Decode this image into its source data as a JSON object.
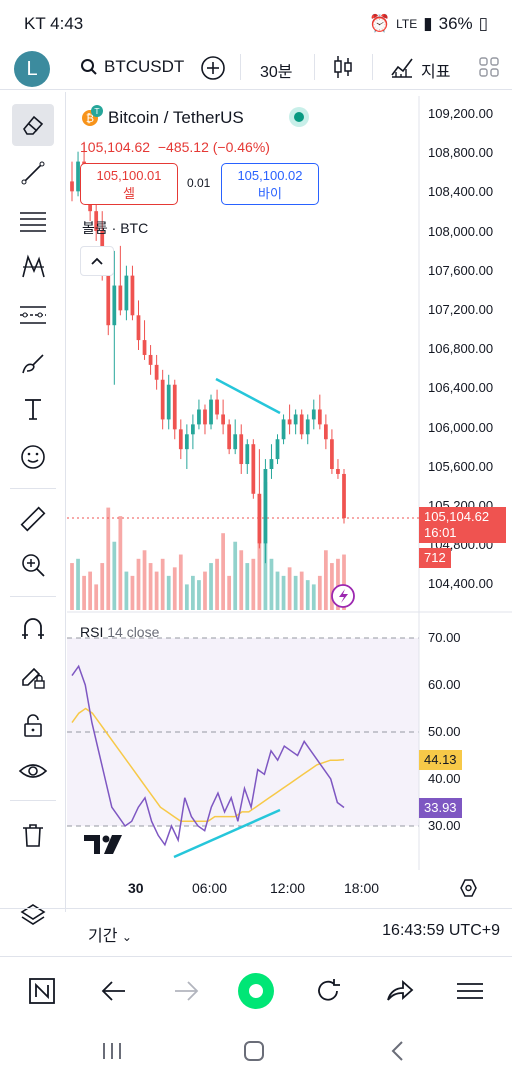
{
  "status_bar": {
    "time": "KT 4:43",
    "network": "LTE",
    "battery": "36%"
  },
  "toolbar": {
    "avatar_letter": "L",
    "symbol": "BTCUSDT",
    "interval": "30분",
    "indicators_label": "지표"
  },
  "legend": {
    "title": "Bitcoin / TetherUS",
    "last_price": "105,104.62",
    "change": "−485.12 (−0.46%)",
    "sell_price": "105,100.01",
    "sell_label": "셀",
    "spread": "0.01",
    "buy_price": "105,100.02",
    "buy_label": "바이",
    "volume_label": "볼륨 · BTC"
  },
  "price_axis": {
    "ticks": [
      "109,200.00",
      "108,800.00",
      "108,400.00",
      "108,000.00",
      "107,600.00",
      "107,200.00",
      "106,800.00",
      "106,400.00",
      "106,000.00",
      "105,600.00",
      "105,200.00",
      "104,800.00",
      "104,400.00"
    ],
    "current_price": "105,104.62",
    "countdown": "16:01",
    "volume_badge": "712"
  },
  "rsi": {
    "legend_name": "RSI",
    "legend_params": "14 close",
    "ticks": [
      "70.00",
      "60.00",
      "50.00",
      "40.00",
      "30.00"
    ],
    "ma_value": "44.13",
    "rsi_value": "33.93"
  },
  "time_axis": {
    "ticks": [
      "30",
      "06:00",
      "12:00",
      "18:00"
    ]
  },
  "bottom_bar": {
    "period_label": "기간",
    "clock": "16:43:59 UTC+9"
  },
  "colors": {
    "up": "#26a69a",
    "down": "#ef5350",
    "rsi_line": "#7e57c2",
    "rsi_ma": "#f7c948",
    "trendline": "#26c6da"
  },
  "chart_data": {
    "type": "candlestick",
    "title": "Bitcoin / TetherUS",
    "interval": "30분",
    "ylim": [
      104300,
      109300
    ],
    "candles": [
      {
        "o": 108500,
        "h": 108700,
        "l": 108300,
        "c": 108400
      },
      {
        "o": 108400,
        "h": 108800,
        "l": 108350,
        "c": 108700
      },
      {
        "o": 108700,
        "h": 108900,
        "l": 108500,
        "c": 108550
      },
      {
        "o": 108550,
        "h": 108650,
        "l": 108100,
        "c": 108200
      },
      {
        "o": 108200,
        "h": 108300,
        "l": 107900,
        "c": 108000
      },
      {
        "o": 108000,
        "h": 108200,
        "l": 107500,
        "c": 107600
      },
      {
        "o": 107600,
        "h": 107700,
        "l": 106950,
        "c": 107050
      },
      {
        "o": 107050,
        "h": 107800,
        "l": 106450,
        "c": 107450
      },
      {
        "o": 107450,
        "h": 107850,
        "l": 107150,
        "c": 107200
      },
      {
        "o": 107200,
        "h": 107650,
        "l": 107100,
        "c": 107550
      },
      {
        "o": 107550,
        "h": 107650,
        "l": 107100,
        "c": 107150
      },
      {
        "o": 107150,
        "h": 107300,
        "l": 106800,
        "c": 106900
      },
      {
        "o": 106900,
        "h": 107100,
        "l": 106700,
        "c": 106750
      },
      {
        "o": 106750,
        "h": 106850,
        "l": 106550,
        "c": 106650
      },
      {
        "o": 106650,
        "h": 106750,
        "l": 106400,
        "c": 106500
      },
      {
        "o": 106500,
        "h": 106600,
        "l": 106000,
        "c": 106100
      },
      {
        "o": 106100,
        "h": 106550,
        "l": 106000,
        "c": 106450
      },
      {
        "o": 106450,
        "h": 106500,
        "l": 105900,
        "c": 106000
      },
      {
        "o": 106000,
        "h": 106100,
        "l": 105700,
        "c": 105800
      },
      {
        "o": 105800,
        "h": 106050,
        "l": 105600,
        "c": 105950
      },
      {
        "o": 105950,
        "h": 106150,
        "l": 105800,
        "c": 106050
      },
      {
        "o": 106050,
        "h": 106300,
        "l": 106000,
        "c": 106200
      },
      {
        "o": 106200,
        "h": 106250,
        "l": 105950,
        "c": 106050
      },
      {
        "o": 106050,
        "h": 106350,
        "l": 106000,
        "c": 106300
      },
      {
        "o": 106300,
        "h": 106400,
        "l": 106100,
        "c": 106150
      },
      {
        "o": 106150,
        "h": 106300,
        "l": 105950,
        "c": 106050
      },
      {
        "o": 106050,
        "h": 106100,
        "l": 105750,
        "c": 105800
      },
      {
        "o": 105800,
        "h": 106100,
        "l": 105750,
        "c": 105950
      },
      {
        "o": 105950,
        "h": 106050,
        "l": 105550,
        "c": 105650
      },
      {
        "o": 105650,
        "h": 105900,
        "l": 105550,
        "c": 105850
      },
      {
        "o": 105850,
        "h": 105900,
        "l": 105300,
        "c": 105350
      },
      {
        "o": 105350,
        "h": 105800,
        "l": 104800,
        "c": 104850
      },
      {
        "o": 104850,
        "h": 105700,
        "l": 104650,
        "c": 105600
      },
      {
        "o": 105600,
        "h": 105850,
        "l": 105500,
        "c": 105700
      },
      {
        "o": 105700,
        "h": 105950,
        "l": 105650,
        "c": 105900
      },
      {
        "o": 105900,
        "h": 106150,
        "l": 105850,
        "c": 106100
      },
      {
        "o": 106100,
        "h": 106250,
        "l": 105950,
        "c": 106050
      },
      {
        "o": 106050,
        "h": 106200,
        "l": 105950,
        "c": 106150
      },
      {
        "o": 106150,
        "h": 106200,
        "l": 105900,
        "c": 105950
      },
      {
        "o": 105950,
        "h": 106150,
        "l": 105850,
        "c": 106100
      },
      {
        "o": 106100,
        "h": 106300,
        "l": 106000,
        "c": 106200
      },
      {
        "o": 106200,
        "h": 106350,
        "l": 106000,
        "c": 106050
      },
      {
        "o": 106050,
        "h": 106150,
        "l": 105800,
        "c": 105900
      },
      {
        "o": 105900,
        "h": 106000,
        "l": 105550,
        "c": 105600
      },
      {
        "o": 105600,
        "h": 105700,
        "l": 105500,
        "c": 105550
      },
      {
        "o": 105550,
        "h": 105600,
        "l": 105050,
        "c": 105104.62
      }
    ],
    "volumes": [
      55,
      60,
      40,
      45,
      30,
      55,
      120,
      80,
      110,
      45,
      40,
      60,
      70,
      55,
      45,
      60,
      40,
      50,
      65,
      30,
      40,
      35,
      45,
      55,
      60,
      90,
      40,
      80,
      70,
      55,
      60,
      130,
      150,
      60,
      45,
      40,
      50,
      40,
      45,
      35,
      30,
      40,
      70,
      55,
      60,
      65
    ],
    "rsi_series": [
      62,
      64,
      60,
      52,
      46,
      40,
      34,
      32,
      30,
      31,
      34,
      36,
      31,
      28,
      26,
      30,
      27,
      36,
      32,
      30,
      29,
      34,
      37,
      33,
      36,
      31,
      38,
      34,
      42,
      41,
      46,
      44,
      47,
      46,
      45,
      48,
      46,
      44,
      42,
      40,
      35,
      33.93
    ],
    "rsi_ma_series": [
      52,
      54,
      55,
      54,
      52,
      50,
      48,
      46,
      44,
      42,
      40,
      38,
      36,
      34,
      33,
      32,
      31,
      31,
      31,
      31,
      31,
      32,
      32,
      32,
      32,
      33,
      33,
      34,
      35,
      36,
      37,
      38,
      39,
      40,
      41,
      42,
      43,
      43.5,
      44,
      44,
      44.13
    ],
    "rsi_ylim": [
      25,
      75
    ]
  }
}
